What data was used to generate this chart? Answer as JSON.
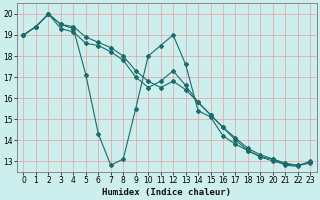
{
  "title": "",
  "xlabel": "Humidex (Indice chaleur)",
  "bg_color": "#cceeed",
  "grid_color": "#e8a0a0",
  "line_color": "#1a6b6b",
  "ylim": [
    12.5,
    20.5
  ],
  "xlim": [
    -0.5,
    23.5
  ],
  "yticks": [
    13,
    14,
    15,
    16,
    17,
    18,
    19,
    20
  ],
  "xticks": [
    0,
    1,
    2,
    3,
    4,
    5,
    6,
    7,
    8,
    9,
    10,
    11,
    12,
    13,
    14,
    15,
    16,
    17,
    18,
    19,
    20,
    21,
    22,
    23
  ],
  "series": [
    [
      19.0,
      19.4,
      20.0,
      19.5,
      19.3,
      17.1,
      14.3,
      12.8,
      13.1,
      15.5,
      18.0,
      18.5,
      19.0,
      17.6,
      15.4,
      15.1,
      14.2,
      13.8,
      13.5,
      13.2,
      13.1,
      12.8,
      12.75,
      13.0
    ],
    [
      19.0,
      19.4,
      20.0,
      19.3,
      19.15,
      18.6,
      18.5,
      18.2,
      17.8,
      17.0,
      16.5,
      16.8,
      17.3,
      16.6,
      15.8,
      15.2,
      14.6,
      14.0,
      13.5,
      13.2,
      13.0,
      12.85,
      12.8,
      12.9
    ],
    [
      19.0,
      19.4,
      20.0,
      19.5,
      19.4,
      18.9,
      18.65,
      18.4,
      18.0,
      17.3,
      16.8,
      16.5,
      16.8,
      16.4,
      15.8,
      15.2,
      14.6,
      14.1,
      13.6,
      13.3,
      13.1,
      12.9,
      12.8,
      12.95
    ]
  ]
}
